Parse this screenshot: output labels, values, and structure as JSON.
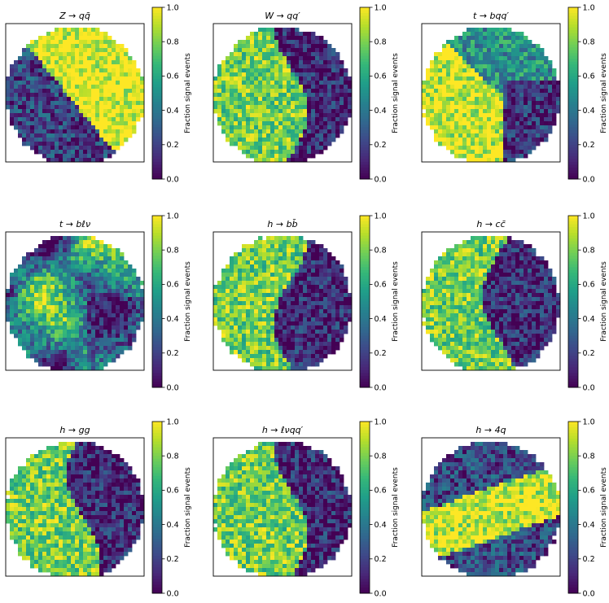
{
  "figure": {
    "colormap": "viridis"
  },
  "chart_data": [
    {
      "type": "heatmap",
      "title": "Z → qq̄",
      "signal_side": "right",
      "colorbar_label": "Fraction signal events",
      "colorbar_range": [
        0.0,
        1.0
      ],
      "colorbar_ticks": [
        "0.0",
        "0.2",
        "0.4",
        "0.6",
        "0.8",
        "1.0"
      ],
      "xlabel": "",
      "ylabel": ""
    },
    {
      "type": "heatmap",
      "title": "W → qq′",
      "signal_side": "left",
      "colorbar_label": "Fraction signal events",
      "colorbar_range": [
        0.0,
        1.0
      ],
      "colorbar_ticks": [
        "0.0",
        "0.2",
        "0.4",
        "0.6",
        "0.8",
        "1.0"
      ],
      "xlabel": "",
      "ylabel": ""
    },
    {
      "type": "heatmap",
      "title": "t → bqq′",
      "signal_side": "bottom-left",
      "colorbar_label": "Fraction signal events",
      "colorbar_range": [
        0.0,
        1.0
      ],
      "colorbar_ticks": [
        "0.0",
        "0.2",
        "0.4",
        "0.6",
        "0.8",
        "1.0"
      ],
      "xlabel": "",
      "ylabel": ""
    },
    {
      "type": "heatmap",
      "title": "t → bℓν",
      "signal_side": "mixed",
      "colorbar_label": "Fraction signal events",
      "colorbar_range": [
        0.0,
        1.0
      ],
      "colorbar_ticks": [
        "0.0",
        "0.2",
        "0.4",
        "0.6",
        "0.8",
        "1.0"
      ],
      "xlabel": "",
      "ylabel": ""
    },
    {
      "type": "heatmap",
      "title": "h → bb̄",
      "signal_side": "left",
      "colorbar_label": "Fraction signal events",
      "colorbar_range": [
        0.0,
        1.0
      ],
      "colorbar_ticks": [
        "0.0",
        "0.2",
        "0.4",
        "0.6",
        "0.8",
        "1.0"
      ],
      "xlabel": "",
      "ylabel": ""
    },
    {
      "type": "heatmap",
      "title": "h → cc̄",
      "signal_side": "left",
      "colorbar_label": "Fraction signal events",
      "colorbar_range": [
        0.0,
        1.0
      ],
      "colorbar_ticks": [
        "0.0",
        "0.2",
        "0.4",
        "0.6",
        "0.8",
        "1.0"
      ],
      "xlabel": "",
      "ylabel": ""
    },
    {
      "type": "heatmap",
      "title": "h → gg",
      "signal_side": "left",
      "colorbar_label": "Fraction signal events",
      "colorbar_range": [
        0.0,
        1.0
      ],
      "colorbar_ticks": [
        "0.0",
        "0.2",
        "0.4",
        "0.6",
        "0.8",
        "1.0"
      ],
      "xlabel": "",
      "ylabel": ""
    },
    {
      "type": "heatmap",
      "title": "h → ℓνqq′",
      "signal_side": "left",
      "colorbar_label": "Fraction signal events",
      "colorbar_range": [
        0.0,
        1.0
      ],
      "colorbar_ticks": [
        "0.0",
        "0.2",
        "0.4",
        "0.6",
        "0.8",
        "1.0"
      ],
      "xlabel": "",
      "ylabel": ""
    },
    {
      "type": "heatmap",
      "title": "h → 4q",
      "signal_side": "middle-band",
      "colorbar_label": "Fraction signal events",
      "colorbar_range": [
        0.0,
        1.0
      ],
      "colorbar_ticks": [
        "0.0",
        "0.2",
        "0.4",
        "0.6",
        "0.8",
        "1.0"
      ],
      "xlabel": "",
      "ylabel": ""
    }
  ]
}
